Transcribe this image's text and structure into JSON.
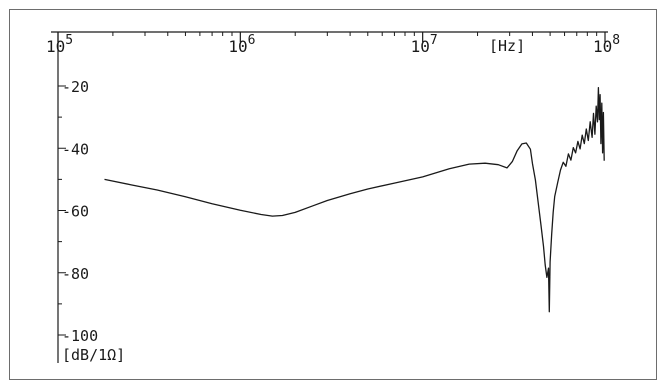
{
  "chart_data": {
    "type": "line",
    "title": "",
    "xscale": "log",
    "xlim": [
      100000,
      100000000
    ],
    "ylim": [
      -100,
      -20
    ],
    "xunit": "[Hz]",
    "yunit": "[dB/1Ω]",
    "xticks": [
      {
        "value": 100000,
        "base": "10",
        "exp": "5"
      },
      {
        "value": 1000000,
        "base": "10",
        "exp": "6"
      },
      {
        "value": 10000000,
        "base": "10",
        "exp": "7"
      },
      {
        "value": 100000000,
        "base": "10",
        "exp": "8"
      }
    ],
    "yticks": [
      {
        "value": -20,
        "label": "-20"
      },
      {
        "value": -40,
        "label": "-40"
      },
      {
        "value": -60,
        "label": "-60"
      },
      {
        "value": -80,
        "label": "-80"
      },
      {
        "value": -100,
        "label": "-100"
      }
    ],
    "grid": false,
    "series": [
      {
        "points": [
          [
            180000,
            -50
          ],
          [
            250000,
            -51.7
          ],
          [
            350000,
            -53.4
          ],
          [
            500000,
            -55.6
          ],
          [
            700000,
            -57.8
          ],
          [
            1000000,
            -59.9
          ],
          [
            1300000,
            -61.3
          ],
          [
            1500000,
            -61.8
          ],
          [
            1700000,
            -61.6
          ],
          [
            2000000,
            -60.6
          ],
          [
            2500000,
            -58.5
          ],
          [
            3000000,
            -56.8
          ],
          [
            4000000,
            -54.6
          ],
          [
            5000000,
            -53.1
          ],
          [
            7000000,
            -51.2
          ],
          [
            10000000,
            -49.2
          ],
          [
            14000000,
            -46.6
          ],
          [
            18000000,
            -45.1
          ],
          [
            22000000,
            -44.8
          ],
          [
            26000000,
            -45.3
          ],
          [
            29000000,
            -46.3
          ],
          [
            31000000,
            -44.3
          ],
          [
            33000000,
            -40.8
          ],
          [
            35000000,
            -38.6
          ],
          [
            37000000,
            -38.3
          ],
          [
            39000000,
            -40.3
          ],
          [
            40000000,
            -44.8
          ],
          [
            41500000,
            -50.2
          ],
          [
            43000000,
            -57.5
          ],
          [
            44500000,
            -64.5
          ],
          [
            46000000,
            -71.5
          ],
          [
            47000000,
            -77.5
          ],
          [
            48000000,
            -81.5
          ],
          [
            49000000,
            -78.5
          ],
          [
            49500000,
            -92.5
          ],
          [
            50000000,
            -76.5
          ],
          [
            51000000,
            -67.5
          ],
          [
            52000000,
            -60.5
          ],
          [
            53000000,
            -55.5
          ],
          [
            55000000,
            -51
          ],
          [
            57000000,
            -47
          ],
          [
            59000000,
            -44.5
          ],
          [
            61000000,
            -45.8
          ],
          [
            63000000,
            -41.8
          ],
          [
            65000000,
            -43.8
          ],
          [
            67000000,
            -39.8
          ],
          [
            69000000,
            -41.5
          ],
          [
            71000000,
            -37.8
          ],
          [
            73000000,
            -40.2
          ],
          [
            75000000,
            -35.8
          ],
          [
            77000000,
            -38.5
          ],
          [
            79000000,
            -33.8
          ],
          [
            81000000,
            -37.5
          ],
          [
            83000000,
            -31.5
          ],
          [
            85000000,
            -36.5
          ],
          [
            86500000,
            -28.8
          ],
          [
            88000000,
            -35.5
          ],
          [
            89500000,
            -26.5
          ],
          [
            91000000,
            -31.5
          ],
          [
            92000000,
            -20.5
          ],
          [
            93000000,
            -30.8
          ],
          [
            94000000,
            -22.8
          ],
          [
            95000000,
            -38.5
          ],
          [
            96000000,
            -25.5
          ],
          [
            97000000,
            -41.5
          ],
          [
            98000000,
            -28.5
          ],
          [
            99000000,
            -44
          ]
        ]
      }
    ]
  }
}
